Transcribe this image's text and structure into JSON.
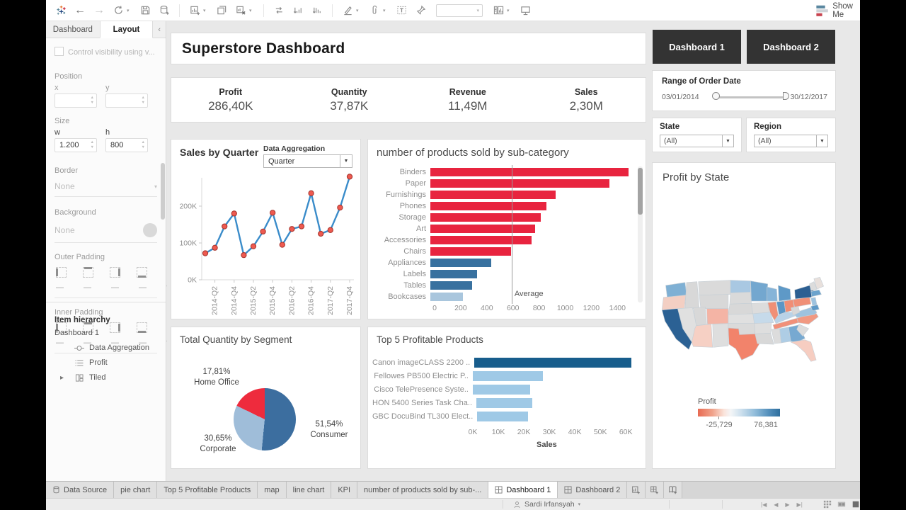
{
  "window": {
    "show_me_label": "Show Me"
  },
  "sidebar": {
    "tabs": [
      {
        "label": "Dashboard"
      },
      {
        "label": "Layout"
      }
    ],
    "active_tab": "Layout",
    "visibility_label": "Control visibility using v...",
    "position": {
      "label": "Position",
      "x_label": "x",
      "y_label": "y",
      "x_value": "",
      "y_value": ""
    },
    "size": {
      "label": "Size",
      "w_label": "w",
      "h_label": "h",
      "w_value": "1.200",
      "h_value": "800"
    },
    "border": {
      "label": "Border",
      "value": "None"
    },
    "background": {
      "label": "Background",
      "value": "None"
    },
    "outer_padding_label": "Outer Padding",
    "inner_padding_label": "Inner Padding",
    "padding_value": "—",
    "item_hierarchy": {
      "label": "Item hierarchy",
      "root": "Dashboard 1",
      "items": [
        {
          "label": "Data Aggregation"
        },
        {
          "label": "Profit"
        },
        {
          "label": "Tiled"
        }
      ]
    }
  },
  "dashboard": {
    "title": "Superstore Dashboard",
    "kpis": [
      {
        "label": "Profit",
        "value": "286,40K"
      },
      {
        "label": "Quantity",
        "value": "37,87K"
      },
      {
        "label": "Revenue",
        "value": "11,49M"
      },
      {
        "label": "Sales",
        "value": "2,30M"
      }
    ],
    "nav_buttons": [
      {
        "label": "Dashboard 1"
      },
      {
        "label": "Dashboard 2"
      }
    ],
    "date_filter": {
      "title": "Range of Order Date",
      "start": "03/01/2014",
      "end": "30/12/2017"
    },
    "state_filter": {
      "label": "State",
      "value": "(All)"
    },
    "region_filter": {
      "label": "Region",
      "value": "(All)"
    }
  },
  "chart_data": [
    {
      "id": "sales-by-quarter",
      "type": "line",
      "title": "Sales by Quarter",
      "parameter": {
        "label": "Data Aggregation",
        "value": "Quarter"
      },
      "x": [
        "2014-Q1",
        "2014-Q2",
        "2014-Q3",
        "2014-Q4",
        "2015-Q1",
        "2015-Q2",
        "2015-Q3",
        "2015-Q4",
        "2016-Q1",
        "2016-Q2",
        "2016-Q3",
        "2016-Q4",
        "2017-Q1",
        "2017-Q2",
        "2017-Q3",
        "2017-Q4"
      ],
      "values": [
        72000,
        87000,
        145000,
        180000,
        67000,
        91000,
        131000,
        182000,
        95000,
        138000,
        145000,
        235000,
        125000,
        135000,
        196000,
        280000
      ],
      "x_tick_labels": [
        "2014-Q2",
        "2014-Q4",
        "2015-Q2",
        "2015-Q4",
        "2016-Q2",
        "2016-Q4",
        "2017-Q2",
        "2017-Q4"
      ],
      "y_ticks": [
        {
          "label": "0K",
          "value": 0
        },
        {
          "label": "100K",
          "value": 100000
        },
        {
          "label": "200K",
          "value": 200000
        }
      ],
      "ylim": [
        0,
        300000
      ],
      "line_color": "#3a8cca",
      "marker_fill": "#ee5a50",
      "marker_stroke": "#a93730"
    },
    {
      "id": "products-by-subcategory",
      "type": "bar",
      "title": "number of products sold by sub-category",
      "categories": [
        "Binders",
        "Paper",
        "Furnishings",
        "Phones",
        "Storage",
        "Art",
        "Accessories",
        "Chairs",
        "Appliances",
        "Labels",
        "Tables",
        "Bookcases"
      ],
      "values": [
        1520,
        1370,
        960,
        890,
        845,
        800,
        775,
        620,
        465,
        360,
        320,
        250
      ],
      "average": 590,
      "average_label": "Average",
      "x_ticks": [
        0,
        200,
        400,
        600,
        800,
        1000,
        1200,
        1400
      ],
      "xlim": [
        0,
        1550
      ],
      "above_average_color": "#e8243f",
      "below_average_color": "#38719f",
      "clipped_last_color": "#a9c6dd"
    },
    {
      "id": "quantity-by-segment",
      "type": "pie",
      "title": "Total Quantity by Segment",
      "slices": [
        {
          "label": "Consumer",
          "pct": 51.54,
          "pct_label": "51,54%",
          "color": "#3c6e9f"
        },
        {
          "label": "Corporate",
          "pct": 30.65,
          "pct_label": "30,65%",
          "color": "#9fbdd9"
        },
        {
          "label": "Home Office",
          "pct": 17.81,
          "pct_label": "17,81%",
          "color": "#ee2b3d"
        }
      ]
    },
    {
      "id": "top5-products",
      "type": "bar",
      "title": "Top 5 Profitable Products",
      "categories": [
        "Canon imageCLASS 2200 ..",
        "Fellowes PB500 Electric P..",
        "Cisco TelePresence Syste..",
        "HON 5400 Series Task Cha..",
        "GBC DocuBind TL300 Elect.."
      ],
      "values": [
        61500,
        27500,
        22500,
        22000,
        20000
      ],
      "x_ticks": [
        {
          "label": "0K",
          "value": 0
        },
        {
          "label": "10K",
          "value": 10000
        },
        {
          "label": "20K",
          "value": 20000
        },
        {
          "label": "30K",
          "value": 30000
        },
        {
          "label": "40K",
          "value": 40000
        },
        {
          "label": "50K",
          "value": 50000
        },
        {
          "label": "60K",
          "value": 60000
        }
      ],
      "xlim": [
        0,
        63000
      ],
      "xlabel": "Sales",
      "first_bar_color": "#175d8c",
      "bar_color": "#9fc9e6"
    },
    {
      "id": "profit-by-state",
      "type": "choropleth",
      "title": "Profit by State",
      "legend": {
        "title": "Profit",
        "min_label": "-25,729",
        "max_label": "76,381",
        "min_color": "#e8604c",
        "max_color": "#2e6f9e"
      }
    }
  ],
  "sheet_tabs": {
    "data_source": "Data Source",
    "worksheets": [
      "pie chart",
      "Top 5 Profitable Products",
      "map",
      "line chart",
      "KPI",
      "number of products sold by sub-..."
    ],
    "dashboards": [
      "Dashboard 1",
      "Dashboard 2"
    ],
    "active": "Dashboard 1"
  },
  "status_bar": {
    "user": "Sardi Irfansyah"
  }
}
